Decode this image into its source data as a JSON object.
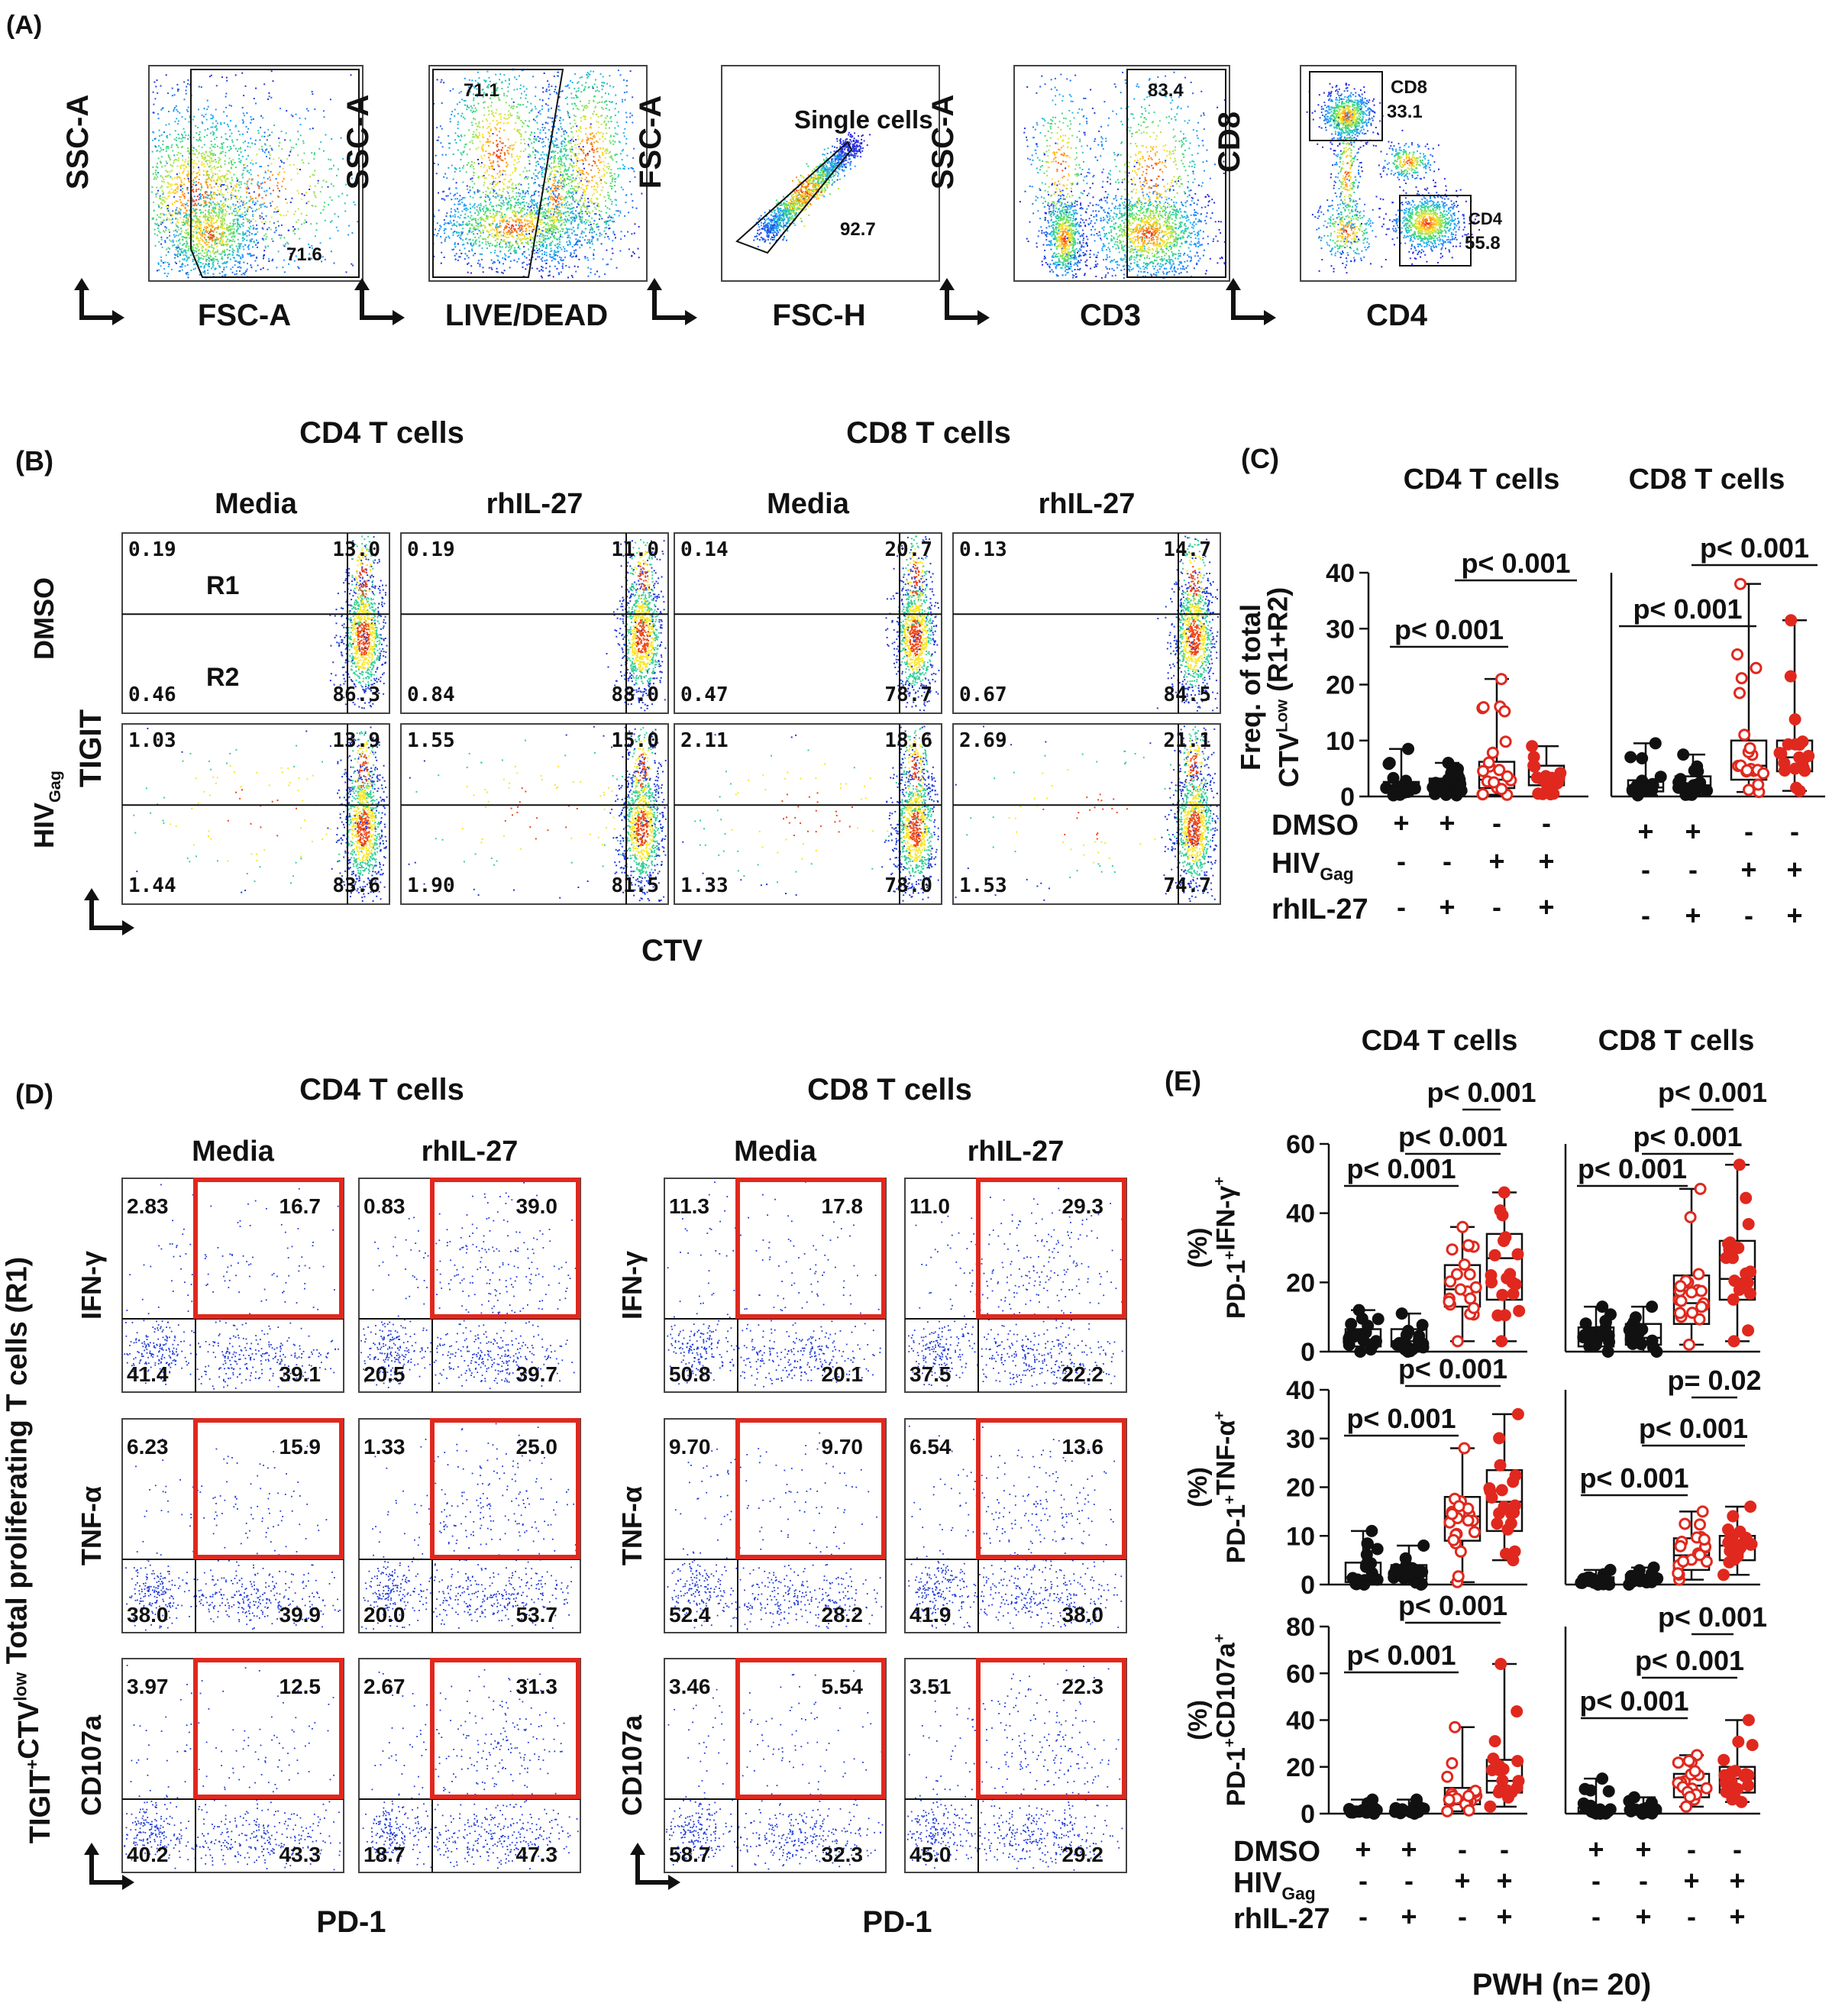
{
  "chart_data": {
    "type": "figure",
    "panel_a": {
      "label": "(A)",
      "plots": [
        {
          "y": "SSC-A",
          "x": "FSC-A",
          "gate_values": [
            "71.6"
          ]
        },
        {
          "y": "SSC-A",
          "x": "LIVE/DEAD",
          "gate_values": [
            "71.1"
          ]
        },
        {
          "y": "FSC-A",
          "x": "FSC-H",
          "gate_values": [
            "Single cells",
            "92.7"
          ]
        },
        {
          "y": "SSC-A",
          "x": "CD3",
          "gate_values": [
            "83.4"
          ]
        },
        {
          "y": "CD8",
          "x": "CD4",
          "gate_values": [
            "CD8",
            "33.1",
            "CD4",
            "55.8"
          ]
        }
      ]
    },
    "panel_b": {
      "label": "(B)",
      "groups": [
        "CD4 T cells",
        "CD8 T cells"
      ],
      "columns": [
        "Media",
        "rhIL-27",
        "Media",
        "rhIL-27"
      ],
      "row_labels": [
        "DMSO",
        "HIV",
        "Gag"
      ],
      "y_axis": "TIGIT",
      "x_axis": "CTV",
      "regions": [
        "R1",
        "R2"
      ],
      "quadrants": [
        [
          [
            "0.19",
            "13.0",
            "0.46",
            "86.3"
          ],
          [
            "0.19",
            "11.0",
            "0.84",
            "88.0"
          ],
          [
            "0.14",
            "20.7",
            "0.47",
            "78.7"
          ],
          [
            "0.13",
            "14.7",
            "0.67",
            "84.5"
          ]
        ],
        [
          [
            "1.03",
            "13.9",
            "1.44",
            "83.6"
          ],
          [
            "1.55",
            "15.0",
            "1.90",
            "81.5"
          ],
          [
            "2.11",
            "18.6",
            "1.33",
            "78.0"
          ],
          [
            "2.69",
            "21.1",
            "1.53",
            "74.7"
          ]
        ]
      ]
    },
    "panel_c": {
      "label": "(C)",
      "groups": [
        "CD4 T cells",
        "CD8 T cells"
      ],
      "ylabel": [
        "Freq. of total",
        "CTV",
        "Low",
        " (R1+R2)"
      ],
      "ylim": [
        0,
        40
      ],
      "yticks": [
        "40",
        "30",
        "20",
        "10",
        "0"
      ],
      "treatments": [
        {
          "name": "DMSO",
          "marks": [
            "+",
            "+",
            "-",
            "-"
          ]
        },
        {
          "name": "HIV",
          "sub": "Gag",
          "marks": [
            "-",
            "-",
            "+",
            "+"
          ]
        },
        {
          "name": "rhIL-27",
          "marks": [
            "-",
            "+",
            "-",
            "+"
          ]
        }
      ],
      "series": [
        {
          "group": "CD4 T cells",
          "boxes": [
            {
              "min": 0.2,
              "q1": 0.8,
              "med": 1.5,
              "q3": 2.6,
              "max": 8.5
            },
            {
              "min": 0.2,
              "q1": 0.9,
              "med": 1.8,
              "q3": 3.2,
              "max": 6.0
            },
            {
              "min": 0.3,
              "q1": 1.5,
              "med": 3.0,
              "q3": 6.2,
              "max": 21
            },
            {
              "min": 0.4,
              "q1": 2.0,
              "med": 3.5,
              "q3": 5.5,
              "max": 9.0
            }
          ]
        },
        {
          "group": "CD8 T cells",
          "boxes": [
            {
              "min": 0.2,
              "q1": 0.9,
              "med": 1.6,
              "q3": 2.9,
              "max": 9.5
            },
            {
              "min": 0.3,
              "q1": 1.0,
              "med": 2.0,
              "q3": 3.6,
              "max": 7.5
            },
            {
              "min": 0.8,
              "q1": 3.0,
              "med": 5.5,
              "q3": 10.0,
              "max": 38
            },
            {
              "min": 1.0,
              "q1": 4.5,
              "med": 7.0,
              "q3": 10.0,
              "max": 31.5
            }
          ]
        }
      ],
      "comparisons": [
        "p< 0.001",
        "p< 0.001",
        "p< 0.001",
        "p< 0.001"
      ]
    },
    "panel_d": {
      "label": "(D)",
      "groups": [
        "CD4 T cells",
        "CD8 T cells"
      ],
      "columns": [
        "Media",
        "rhIL-27",
        "Media",
        "rhIL-27"
      ],
      "row_labels": [
        "IFN-γ",
        "TNF-α",
        "CD107a"
      ],
      "y_axis": [
        "TIGIT",
        "+",
        "CTV",
        "low",
        " Total proliferating T cells (R1)"
      ],
      "x_axis": "PD-1",
      "quadrants": [
        [
          [
            "2.83",
            "16.7",
            "41.4",
            "39.1"
          ],
          [
            "0.83",
            "39.0",
            "20.5",
            "39.7"
          ],
          [
            "11.3",
            "17.8",
            "50.8",
            "20.1"
          ],
          [
            "11.0",
            "29.3",
            "37.5",
            "22.2"
          ]
        ],
        [
          [
            "6.23",
            "15.9",
            "38.0",
            "39.9"
          ],
          [
            "1.33",
            "25.0",
            "20.0",
            "53.7"
          ],
          [
            "9.70",
            "9.70",
            "52.4",
            "28.2"
          ],
          [
            "6.54",
            "13.6",
            "41.9",
            "38.0"
          ]
        ],
        [
          [
            "3.97",
            "12.5",
            "40.2",
            "43.3"
          ],
          [
            "2.67",
            "31.3",
            "18.7",
            "47.3"
          ],
          [
            "3.46",
            "5.54",
            "58.7",
            "32.3"
          ],
          [
            "3.51",
            "22.3",
            "45.0",
            "29.2"
          ]
        ]
      ]
    },
    "panel_e": {
      "label": "(E)",
      "groups": [
        "CD4 T cells",
        "CD8 T cells"
      ],
      "footer": "PWH (n= 20)",
      "treatments": [
        {
          "name": "DMSO",
          "marks": [
            "+",
            "+",
            "-",
            "-"
          ]
        },
        {
          "name": "HIV",
          "sub": "Gag",
          "marks": [
            "-",
            "-",
            "+",
            "+"
          ]
        },
        {
          "name": "rhIL-27",
          "marks": [
            "-",
            "+",
            "-",
            "+"
          ]
        }
      ],
      "rows": [
        {
          "ylabel": [
            "PD-1",
            "+",
            "IFN-γ",
            "+"
          ],
          "ylim": [
            0,
            60
          ],
          "yticks": [
            "60",
            "40",
            "20",
            "0"
          ],
          "cd4": {
            "boxes": [
              {
                "min": 0,
                "q1": 1.5,
                "med": 3.5,
                "q3": 6.5,
                "max": 12
              },
              {
                "min": 0,
                "q1": 1.5,
                "med": 3,
                "q3": 6.5,
                "max": 11
              },
              {
                "min": 3,
                "q1": 13,
                "med": 18,
                "q3": 25,
                "max": 36
              },
              {
                "min": 3,
                "q1": 15,
                "med": 27,
                "q3": 34,
                "max": 46
              }
            ],
            "p": [
              "p< 0.001",
              "p< 0.001",
              "p< 0.001"
            ]
          },
          "cd8": {
            "boxes": [
              {
                "min": 0,
                "q1": 1.5,
                "med": 3.5,
                "q3": 7,
                "max": 13
              },
              {
                "min": 0,
                "q1": 2,
                "med": 4,
                "q3": 8,
                "max": 13
              },
              {
                "min": 2,
                "q1": 8,
                "med": 14,
                "q3": 22,
                "max": 47
              },
              {
                "min": 3,
                "q1": 15,
                "med": 21,
                "q3": 32,
                "max": 54
              }
            ],
            "p": [
              "p< 0.001",
              "p< 0.001",
              "p< 0.001"
            ]
          }
        },
        {
          "ylabel": [
            "PD-1",
            "+",
            "TNF-α",
            "+"
          ],
          "ylim": [
            0,
            40
          ],
          "yticks": [
            "40",
            "30",
            "20",
            "10",
            "0"
          ],
          "cd4": {
            "boxes": [
              {
                "min": 0,
                "q1": 0.5,
                "med": 1.5,
                "q3": 4.5,
                "max": 11
              },
              {
                "min": 0,
                "q1": 1,
                "med": 2,
                "q3": 4,
                "max": 8
              },
              {
                "min": 0.5,
                "q1": 9,
                "med": 14,
                "q3": 18,
                "max": 28
              },
              {
                "min": 5,
                "q1": 11,
                "med": 17,
                "q3": 23.5,
                "max": 35
              }
            ],
            "p": [
              "p< 0.001",
              "p< 0.001"
            ]
          },
          "cd8": {
            "boxes": [
              {
                "min": 0,
                "q1": 0.3,
                "med": 0.8,
                "q3": 1.5,
                "max": 3
              },
              {
                "min": 0,
                "q1": 0.5,
                "med": 1,
                "q3": 2,
                "max": 3.5
              },
              {
                "min": 1,
                "q1": 3,
                "med": 6,
                "q3": 9.5,
                "max": 15
              },
              {
                "min": 2,
                "q1": 5,
                "med": 8,
                "q3": 10,
                "max": 16
              }
            ],
            "p": [
              "p= 0.02",
              "p< 0.001",
              "p< 0.001"
            ]
          }
        },
        {
          "ylabel": [
            "PD-1",
            "+",
            "CD107a",
            "+"
          ],
          "ylim": [
            0,
            80
          ],
          "yticks": [
            "80",
            "60",
            "40",
            "20",
            "0"
          ],
          "cd4": {
            "boxes": [
              {
                "min": 0,
                "q1": 0.5,
                "med": 1,
                "q3": 2,
                "max": 6
              },
              {
                "min": 0,
                "q1": 0.5,
                "med": 1.5,
                "q3": 2.5,
                "max": 6
              },
              {
                "min": 1,
                "q1": 4,
                "med": 7,
                "q3": 11,
                "max": 37
              },
              {
                "min": 3,
                "q1": 9,
                "med": 14,
                "q3": 23,
                "max": 64
              }
            ],
            "p": [
              "p< 0.001",
              "p< 0.001"
            ]
          },
          "cd8": {
            "boxes": [
              {
                "min": 0,
                "q1": 0.3,
                "med": 1,
                "q3": 2.5,
                "max": 15
              },
              {
                "min": 0,
                "q1": 0.5,
                "med": 1,
                "q3": 2,
                "max": 7
              },
              {
                "min": 3,
                "q1": 7,
                "med": 12,
                "q3": 17,
                "max": 25
              },
              {
                "min": 5,
                "q1": 9,
                "med": 15,
                "q3": 20,
                "max": 40
              }
            ],
            "p": [
              "p< 0.001",
              "p< 0.001",
              "p< 0.001"
            ]
          }
        }
      ]
    },
    "colors": {
      "red": "#e0281e",
      "black": "#111111",
      "blue": "#1f3ad8"
    }
  }
}
